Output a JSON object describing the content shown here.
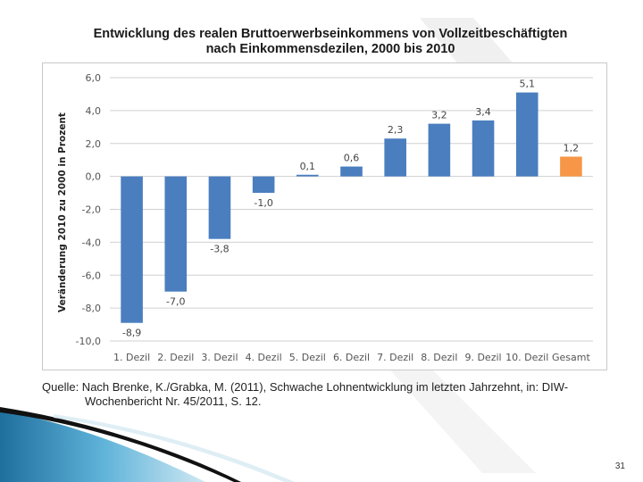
{
  "slide": {
    "title_line1": "Entwicklung des realen Bruttoerwerbseinkommens von Vollzeitbeschäftigten",
    "title_line2": "nach Einkommensdezilen, 2000 bis 2010",
    "source_line1": "Quelle: Nach Brenke, K./Grabka, M. (2011), Schwache Lohnentwicklung im letzten Jahrzehnt, in: DIW-",
    "source_line2": "Wochenbericht Nr. 45/2011, S. 12.",
    "page_number": "31"
  },
  "colors": {
    "bar": "#4a7ebf",
    "highlight": "#f79646",
    "grid": "#d0d0d0"
  },
  "chart_data": {
    "type": "bar",
    "title": "Entwicklung des realen Bruttoerwerbseinkommens von Vollzeitbeschäftigten nach Einkommensdezilen, 2000 bis 2010",
    "xlabel": "",
    "ylabel": "Veränderung 2010 zu 2000 in Prozent",
    "categories": [
      "1. Dezil",
      "2. Dezil",
      "3. Dezil",
      "4. Dezil",
      "5. Dezil",
      "6. Dezil",
      "7. Dezil",
      "8. Dezil",
      "9. Dezil",
      "10. Dezil",
      "Gesamt"
    ],
    "values": [
      -8.9,
      -7.0,
      -3.8,
      -1.0,
      0.1,
      0.6,
      2.3,
      3.2,
      3.4,
      5.1,
      1.2
    ],
    "value_labels": [
      "-8,9",
      "-7,0",
      "-3,8",
      "-1,0",
      "0,1",
      "0,6",
      "2,3",
      "3,2",
      "3,4",
      "5,1",
      "1,2"
    ],
    "highlight_index": 10,
    "ylim": [
      -10,
      6
    ],
    "yticks": [
      6,
      4,
      2,
      0,
      -2,
      -4,
      -6,
      -8,
      -10
    ],
    "ytick_labels": [
      "6,0",
      "4,0",
      "2,0",
      "0,0",
      "-2,0",
      "-4,0",
      "-6,0",
      "-8,0",
      "-10,0"
    ],
    "grid": true,
    "legend": "none"
  }
}
